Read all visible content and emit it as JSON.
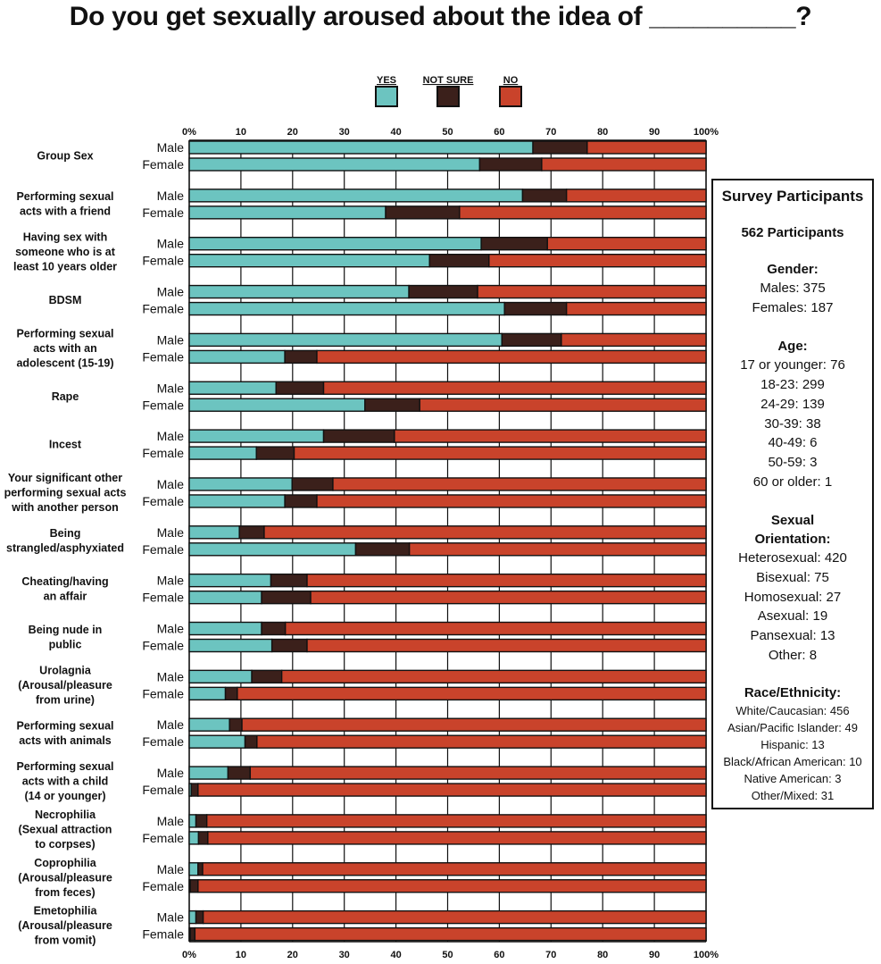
{
  "title": "Do you get sexually aroused about the idea of __________?",
  "chart_data": {
    "type": "stacked-bar-horizontal",
    "title": "Do you get sexually aroused about the idea of __________?",
    "legend": [
      {
        "name": "YES",
        "color": "#6cc4c0"
      },
      {
        "name": "NOT SURE",
        "color": "#3b201b"
      },
      {
        "name": "NO",
        "color": "#c9432b"
      }
    ],
    "xlim": [
      0,
      100
    ],
    "x_ticks": [
      "0%",
      "10",
      "20",
      "30",
      "40",
      "50",
      "60",
      "70",
      "80",
      "90",
      "100%"
    ],
    "groups": [
      "Male",
      "Female"
    ],
    "categories": [
      {
        "label": [
          "Group Sex"
        ],
        "male": [
          66.5,
          10.5
        ],
        "female": [
          56.2,
          12.0
        ]
      },
      {
        "label": [
          "Performing sexual",
          "acts with a friend"
        ],
        "male": [
          64.5,
          8.5
        ],
        "female": [
          38.0,
          14.3
        ]
      },
      {
        "label": [
          "Having sex with",
          "someone who is at",
          "least 10 years older"
        ],
        "male": [
          56.5,
          12.8
        ],
        "female": [
          46.5,
          11.5
        ]
      },
      {
        "label": [
          "BDSM"
        ],
        "male": [
          42.5,
          13.3
        ],
        "female": [
          61.0,
          12.0
        ]
      },
      {
        "label": [
          "Performing sexual",
          "acts with an",
          "adolescent (15-19)"
        ],
        "male": [
          60.5,
          11.5
        ],
        "female": [
          18.5,
          6.2
        ]
      },
      {
        "label": [
          "Rape"
        ],
        "male": [
          16.8,
          9.2
        ],
        "female": [
          34.0,
          10.6
        ]
      },
      {
        "label": [
          "Incest"
        ],
        "male": [
          26.0,
          13.7
        ],
        "female": [
          13.0,
          7.3
        ]
      },
      {
        "label": [
          "Your significant other",
          "performing sexual acts",
          "with another person"
        ],
        "male": [
          19.9,
          7.9
        ],
        "female": [
          18.5,
          6.2
        ]
      },
      {
        "label": [
          "Being",
          "strangled/asphyxiated"
        ],
        "male": [
          9.7,
          4.8
        ],
        "female": [
          32.2,
          10.4
        ]
      },
      {
        "label": [
          "Cheating/having",
          "an affair"
        ],
        "male": [
          15.8,
          7.0
        ],
        "female": [
          14.0,
          9.5
        ]
      },
      {
        "label": [
          "Being nude in",
          "public"
        ],
        "male": [
          14.0,
          4.6
        ],
        "female": [
          16.0,
          6.8
        ]
      },
      {
        "label": [
          "Urolagnia",
          "(Arousal/pleasure",
          "from urine)"
        ],
        "male": [
          12.1,
          5.8
        ],
        "female": [
          7.0,
          2.3
        ]
      },
      {
        "label": [
          "Performing sexual",
          "acts with animals"
        ],
        "male": [
          7.8,
          2.4
        ],
        "female": [
          10.8,
          2.3
        ]
      },
      {
        "label": [
          "Performing sexual",
          "acts with a child",
          "(14 or younger)"
        ],
        "male": [
          7.5,
          4.3
        ],
        "female": [
          0.4,
          1.3
        ]
      },
      {
        "label": [
          "Necrophilia",
          "(Sexual attraction",
          "to corpses)"
        ],
        "male": [
          1.3,
          2.1
        ],
        "female": [
          1.8,
          1.8
        ]
      },
      {
        "label": [
          "Coprophilia",
          "(Arousal/pleasure",
          "from feces)"
        ],
        "male": [
          1.7,
          0.9
        ],
        "female": [
          0.2,
          1.5
        ]
      },
      {
        "label": [
          "Emetophilia",
          "(Arousal/pleasure",
          "from vomit)"
        ],
        "male": [
          1.3,
          1.4
        ],
        "female": [
          0.2,
          0.9
        ]
      }
    ]
  },
  "panel": {
    "title": "Survey Participants",
    "total": "562 Participants",
    "sections": [
      {
        "heading": "Gender:",
        "small": false,
        "items": [
          "Males: 375",
          "Females: 187"
        ]
      },
      {
        "heading": "Age:",
        "small": false,
        "items": [
          "17 or younger: 76",
          "18-23: 299",
          "24-29: 139",
          "30-39: 38",
          "40-49: 6",
          "50-59: 3",
          "60 or older: 1"
        ]
      },
      {
        "heading": "Sexual Orientation:",
        "small": false,
        "items": [
          "Heterosexual: 420",
          "Bisexual: 75",
          "Homosexual: 27",
          "Asexual: 19",
          "Pansexual: 13",
          "Other: 8"
        ]
      },
      {
        "heading": "Race/Ethnicity:",
        "small": true,
        "items": [
          "White/Caucasian: 456",
          "Asian/Pacific Islander: 49",
          "Hispanic: 13",
          "Black/African American: 10",
          "Native American: 3",
          "Other/Mixed: 31"
        ]
      }
    ]
  }
}
